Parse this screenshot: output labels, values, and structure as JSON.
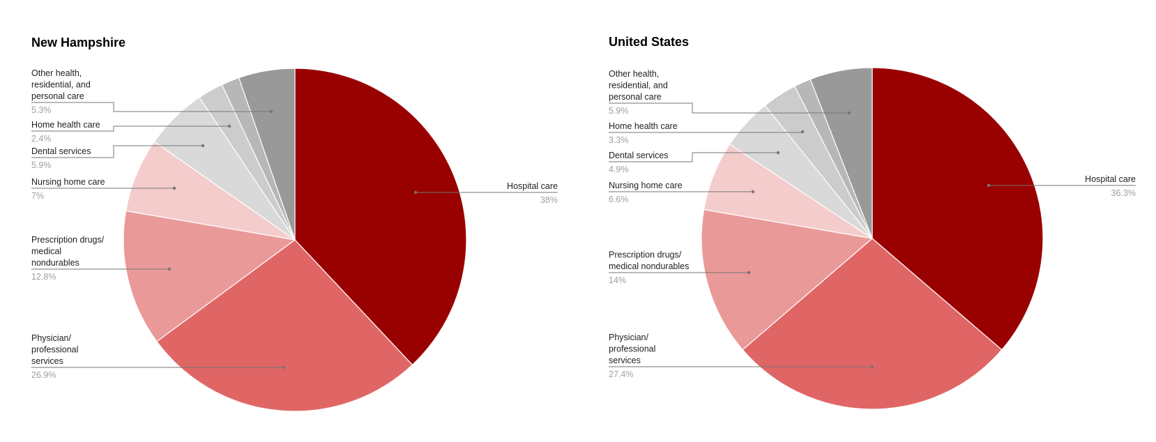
{
  "chart_data": [
    {
      "type": "pie",
      "title": "New Hampshire",
      "start_angle_deg": 0,
      "direction": "clockwise",
      "slices": [
        {
          "label": "Hospital care",
          "value": 38,
          "display": "38%",
          "color": "#990000",
          "labeled": true
        },
        {
          "label": "Physician/ professional services",
          "value": 26.9,
          "display": "26.9%",
          "color": "#E06666",
          "labeled": true
        },
        {
          "label": "Prescription drugs/ medical nondurables",
          "value": 12.8,
          "display": "12.8%",
          "color": "#EA9999",
          "labeled": true
        },
        {
          "label": "Nursing home care",
          "value": 7,
          "display": "7%",
          "color": "#F4CCCC",
          "labeled": true
        },
        {
          "label": "Dental services",
          "value": 5.9,
          "display": "5.9%",
          "color": "#D9D9D9",
          "labeled": true
        },
        {
          "label": "Home health care",
          "value": 2.4,
          "display": "2.4%",
          "color": "#CCCCCC",
          "labeled": true
        },
        {
          "label": "",
          "value": 1.7,
          "display": "",
          "color": "#B7B7B7",
          "labeled": false
        },
        {
          "label": "Other health, residential, and personal care",
          "value": 5.3,
          "display": "5.3%",
          "color": "#999999",
          "labeled": true
        }
      ],
      "label_lines": {
        "Hospital care": [
          "Hospital care"
        ],
        "Physician/ professional services": [
          "Physician/",
          "professional",
          "services"
        ],
        "Prescription drugs/ medical nondurables": [
          "Prescription drugs/",
          "medical",
          "nondurables"
        ],
        "Nursing home care": [
          "Nursing home care"
        ],
        "Dental services": [
          "Dental services"
        ],
        "Home health care": [
          "Home health care"
        ],
        "Other health, residential, and personal care": [
          "Other health,",
          "residential, and",
          "personal care"
        ]
      },
      "legend": "labels-with-leader-lines"
    },
    {
      "type": "pie",
      "title": "United States",
      "start_angle_deg": 0,
      "direction": "clockwise",
      "slices": [
        {
          "label": "Hospital care",
          "value": 36.3,
          "display": "36.3%",
          "color": "#990000",
          "labeled": true
        },
        {
          "label": "Physician/ professional services",
          "value": 27.4,
          "display": "27.4%",
          "color": "#E06666",
          "labeled": true
        },
        {
          "label": "Prescription drugs/ medical nondurables",
          "value": 14,
          "display": "14%",
          "color": "#EA9999",
          "labeled": true
        },
        {
          "label": "Nursing home care",
          "value": 6.6,
          "display": "6.6%",
          "color": "#F4CCCC",
          "labeled": true
        },
        {
          "label": "Dental services",
          "value": 4.9,
          "display": "4.9%",
          "color": "#D9D9D9",
          "labeled": true
        },
        {
          "label": "Home health care",
          "value": 3.3,
          "display": "3.3%",
          "color": "#CCCCCC",
          "labeled": true
        },
        {
          "label": "",
          "value": 1.6,
          "display": "",
          "color": "#B7B7B7",
          "labeled": false
        },
        {
          "label": "Other health, residential, and personal care",
          "value": 5.9,
          "display": "5.9%",
          "color": "#999999",
          "labeled": true
        }
      ],
      "label_lines": {
        "Hospital care": [
          "Hospital care"
        ],
        "Physician/ professional services": [
          "Physician/",
          "professional",
          "services"
        ],
        "Prescription drugs/ medical nondurables": [
          "Prescription drugs/",
          "medical nondurables"
        ],
        "Nursing home care": [
          "Nursing home care"
        ],
        "Dental services": [
          "Dental services"
        ],
        "Home health care": [
          "Home health care"
        ],
        "Other health, residential, and personal care": [
          "Other health,",
          "residential, and",
          "personal care"
        ]
      },
      "legend": "labels-with-leader-lines"
    }
  ]
}
